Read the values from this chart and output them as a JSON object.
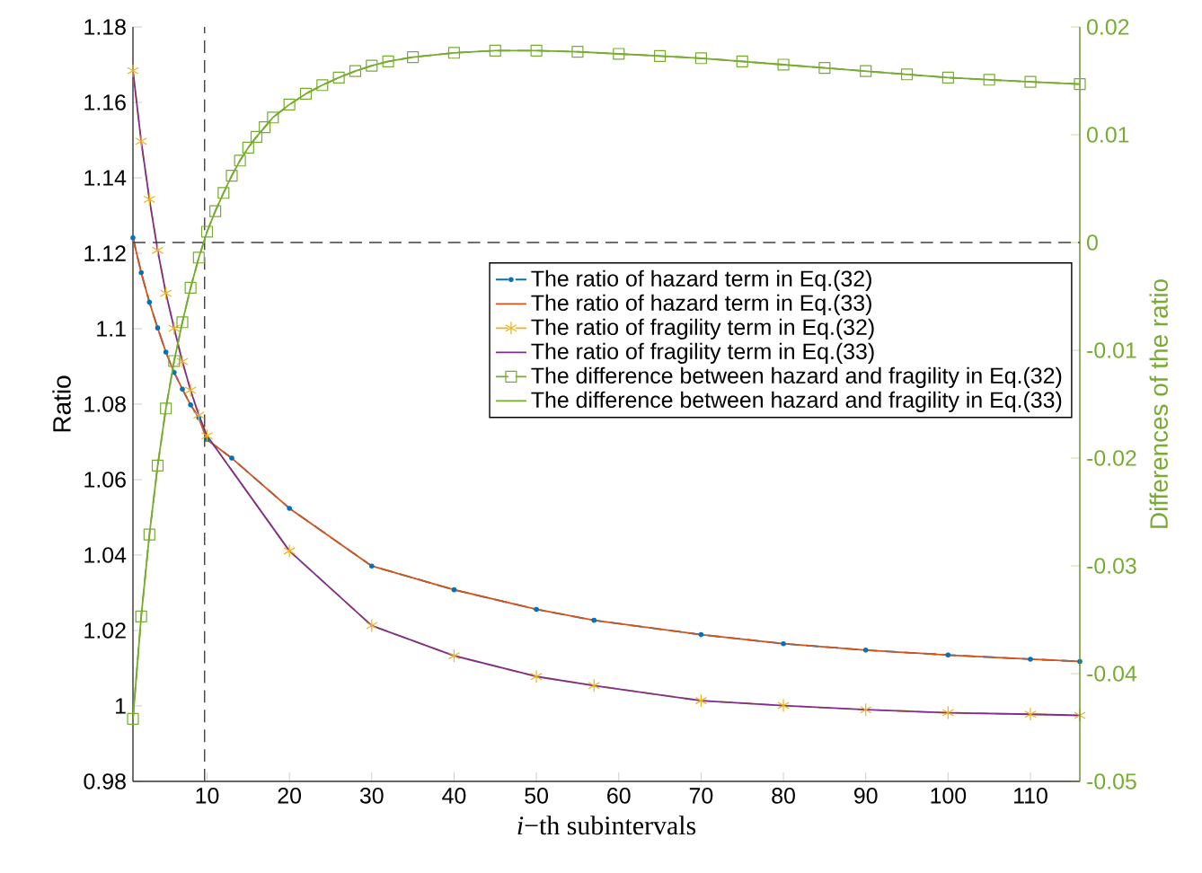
{
  "chart_data": {
    "type": "line",
    "xlabel": "*i*−th subintervals",
    "ylabel": "Ratio",
    "y2label": "Differences of the ratio",
    "xlim": [
      1,
      116
    ],
    "xticks": [
      10,
      20,
      30,
      40,
      50,
      60,
      70,
      80,
      90,
      100,
      110
    ],
    "ylim": [
      0.98,
      1.18
    ],
    "yticks": [
      0.98,
      1,
      1.02,
      1.04,
      1.06,
      1.08,
      1.1,
      1.12,
      1.14,
      1.16,
      1.18
    ],
    "y2lim": [
      -0.05,
      0.02
    ],
    "y2ticks": [
      -0.05,
      -0.04,
      -0.03,
      -0.02,
      -0.01,
      0,
      0.01,
      0.02
    ],
    "legend": "right",
    "ref_lines": [
      {
        "axis": "x",
        "value": 9.7,
        "line_style": "dashed"
      },
      {
        "axis": "y2",
        "value": 0,
        "line_style": "dashed"
      }
    ],
    "series": [
      {
        "name": "The ratio of hazard term in Eq.(32)",
        "color": "#0072bd",
        "marker": "circle",
        "line_style": "dashed",
        "x": [
          1,
          2,
          3,
          4,
          5,
          6,
          7,
          8,
          9,
          10,
          13,
          20,
          30,
          40,
          50,
          57,
          70,
          80,
          90,
          100,
          110,
          116
        ],
        "values": [
          1.1241,
          1.1149,
          1.107,
          1.1002,
          1.0938,
          1.0884,
          1.084,
          1.0798,
          1.0764,
          1.0706,
          1.0657,
          1.0524,
          1.0371,
          1.0308,
          1.0256,
          1.0227,
          1.0189,
          1.0165,
          1.0148,
          1.0135,
          1.0124,
          1.0118
        ]
      },
      {
        "name": "The ratio of hazard term in Eq.(33)",
        "color": "#d95319",
        "line_style": "solid",
        "x": [
          1,
          2,
          3,
          4,
          5,
          6,
          7,
          8,
          9,
          10,
          13,
          20,
          30,
          40,
          50,
          57,
          70,
          80,
          90,
          100,
          110,
          116
        ],
        "values": [
          1.1241,
          1.1149,
          1.107,
          1.1002,
          1.0938,
          1.0884,
          1.084,
          1.0798,
          1.0764,
          1.0706,
          1.0657,
          1.0524,
          1.0371,
          1.0308,
          1.0256,
          1.0227,
          1.0189,
          1.0165,
          1.0148,
          1.0135,
          1.0124,
          1.0118
        ]
      },
      {
        "name": "The ratio of fragility term in Eq.(32)",
        "color": "#edb120",
        "marker": "cross",
        "line_style": "dashed",
        "x": [
          1,
          2,
          3,
          4,
          5,
          6,
          7,
          8,
          9,
          10,
          20,
          30,
          40,
          50,
          57,
          70,
          80,
          90,
          100,
          110,
          116
        ],
        "values": [
          1.1684,
          1.1497,
          1.1343,
          1.1208,
          1.1094,
          1.1001,
          1.0913,
          1.0837,
          1.0771,
          1.0716,
          1.0411,
          1.0213,
          1.0133,
          1.0078,
          1.0054,
          1.0014,
          1.0001,
          0.999,
          0.9982,
          0.9978,
          0.9975
        ]
      },
      {
        "name": "The ratio of fragility term in Eq.(33)",
        "color": "#7e2f8e",
        "line_style": "solid",
        "x": [
          1,
          2,
          3,
          4,
          5,
          6,
          7,
          8,
          9,
          10,
          20,
          30,
          40,
          50,
          57,
          70,
          80,
          90,
          100,
          110,
          116
        ],
        "values": [
          1.1684,
          1.1497,
          1.1343,
          1.1208,
          1.1094,
          1.1001,
          1.0913,
          1.0837,
          1.0771,
          1.0716,
          1.0411,
          1.0213,
          1.0133,
          1.0078,
          1.0054,
          1.0014,
          1.0001,
          0.999,
          0.9982,
          0.9978,
          0.9975
        ]
      },
      {
        "name": "The difference between hazard and fragility in Eq.(32)",
        "color": "#77ac30",
        "axis": "y2",
        "marker": "square",
        "line_style": "dashed",
        "x": [
          1,
          2,
          3,
          4,
          5,
          6,
          7,
          8,
          9,
          10,
          11,
          12,
          13,
          14,
          15,
          16,
          17,
          18,
          20,
          22,
          24,
          26,
          28,
          30,
          32,
          35,
          40,
          45,
          50,
          55,
          60,
          65,
          70,
          75,
          80,
          85,
          90,
          95,
          100,
          105,
          110,
          116
        ],
        "values": [
          -0.0442,
          -0.0347,
          -0.0271,
          -0.0207,
          -0.0154,
          -0.011,
          -0.0074,
          -0.0042,
          -0.0014,
          0.001,
          0.0029,
          0.0046,
          0.0062,
          0.0076,
          0.0088,
          0.0098,
          0.0107,
          0.0116,
          0.0128,
          0.0138,
          0.0146,
          0.0153,
          0.0159,
          0.0164,
          0.0168,
          0.0172,
          0.0176,
          0.0178,
          0.0178,
          0.0177,
          0.0175,
          0.0173,
          0.0171,
          0.0168,
          0.0165,
          0.0162,
          0.0159,
          0.0156,
          0.0153,
          0.0151,
          0.0149,
          0.0147
        ]
      },
      {
        "name": "The difference between hazard and fragility in Eq.(33)",
        "color": "#77ac30",
        "axis": "y2",
        "line_style": "solid",
        "x": [
          1,
          2,
          3,
          4,
          5,
          6,
          7,
          8,
          9,
          10,
          11,
          12,
          13,
          14,
          15,
          16,
          17,
          18,
          20,
          22,
          24,
          26,
          28,
          30,
          32,
          35,
          40,
          45,
          50,
          55,
          60,
          65,
          70,
          75,
          80,
          85,
          90,
          95,
          100,
          105,
          110,
          116
        ],
        "values": [
          -0.0442,
          -0.0347,
          -0.0271,
          -0.0207,
          -0.0154,
          -0.011,
          -0.0074,
          -0.0042,
          -0.0014,
          0.001,
          0.0029,
          0.0046,
          0.0062,
          0.0076,
          0.0088,
          0.0098,
          0.0107,
          0.0116,
          0.0128,
          0.0138,
          0.0146,
          0.0153,
          0.0159,
          0.0164,
          0.0168,
          0.0172,
          0.0176,
          0.0178,
          0.0178,
          0.0177,
          0.0175,
          0.0173,
          0.0171,
          0.0168,
          0.0165,
          0.0162,
          0.0159,
          0.0156,
          0.0153,
          0.0151,
          0.0149,
          0.0147
        ]
      }
    ]
  }
}
